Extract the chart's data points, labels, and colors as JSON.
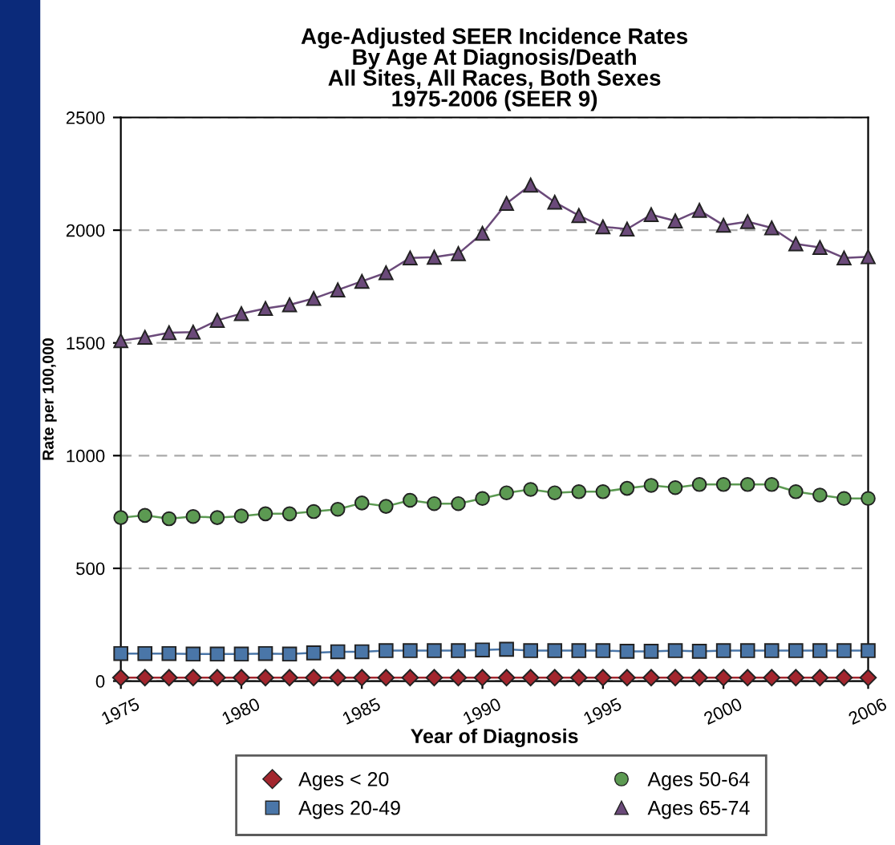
{
  "chart_data": {
    "type": "line",
    "title": "Age-Adjusted SEER Incidence Rates\nBy Age At Diagnosis/Death\nAll Sites, All Races, Both Sexes\n1975-2006 (SEER 9)",
    "xlabel": "Year of Diagnosis",
    "ylabel": "Rate per 100,000",
    "x": [
      1975,
      1976,
      1977,
      1978,
      1979,
      1980,
      1981,
      1982,
      1983,
      1984,
      1985,
      1986,
      1987,
      1988,
      1989,
      1990,
      1991,
      1992,
      1993,
      1994,
      1995,
      1996,
      1997,
      1998,
      1999,
      2000,
      2001,
      2002,
      2003,
      2004,
      2005,
      2006
    ],
    "series": [
      {
        "name": "Ages < 20",
        "color": "#a3262e",
        "marker": "diamond",
        "values": [
          15,
          15,
          15,
          15,
          15,
          15,
          15,
          15,
          15,
          15,
          15,
          15,
          15,
          15,
          15,
          15,
          15,
          15,
          15,
          15,
          15,
          15,
          15,
          15,
          15,
          15,
          15,
          15,
          15,
          15,
          15,
          15
        ]
      },
      {
        "name": "Ages 20-49",
        "color": "#4a76a8",
        "marker": "square",
        "values": [
          122,
          122,
          122,
          120,
          120,
          120,
          122,
          120,
          125,
          130,
          130,
          135,
          135,
          135,
          135,
          138,
          141,
          135,
          135,
          135,
          135,
          132,
          132,
          135,
          132,
          135,
          135,
          135,
          135,
          135,
          135,
          135
        ]
      },
      {
        "name": "Ages 50-64",
        "color": "#5c9a52",
        "marker": "circle",
        "values": [
          725,
          735,
          720,
          730,
          725,
          732,
          742,
          742,
          752,
          762,
          790,
          775,
          802,
          787,
          787,
          810,
          835,
          850,
          835,
          840,
          840,
          855,
          868,
          858,
          872,
          872,
          872,
          872,
          840,
          825,
          810,
          810
        ]
      },
      {
        "name": "Ages 65-74",
        "color": "#6b4a7a",
        "marker": "triangle",
        "values": [
          1510,
          1525,
          1545,
          1548,
          1600,
          1630,
          1653,
          1669,
          1697,
          1735,
          1773,
          1811,
          1877,
          1880,
          1896,
          1986,
          2119,
          2200,
          2124,
          2065,
          2015,
          2005,
          2069,
          2041,
          2088,
          2022,
          2038,
          2010,
          1939,
          1923,
          1877,
          1882
        ]
      }
    ],
    "xlim": [
      1975,
      2006
    ],
    "xticks": [
      1975,
      1980,
      1985,
      1990,
      1995,
      2000,
      2006
    ],
    "ylim": [
      0,
      2500
    ],
    "yticks": [
      0,
      500,
      1000,
      1500,
      2000,
      2500
    ],
    "grid": "y",
    "legend": "bottom",
    "line_style": "solid"
  }
}
